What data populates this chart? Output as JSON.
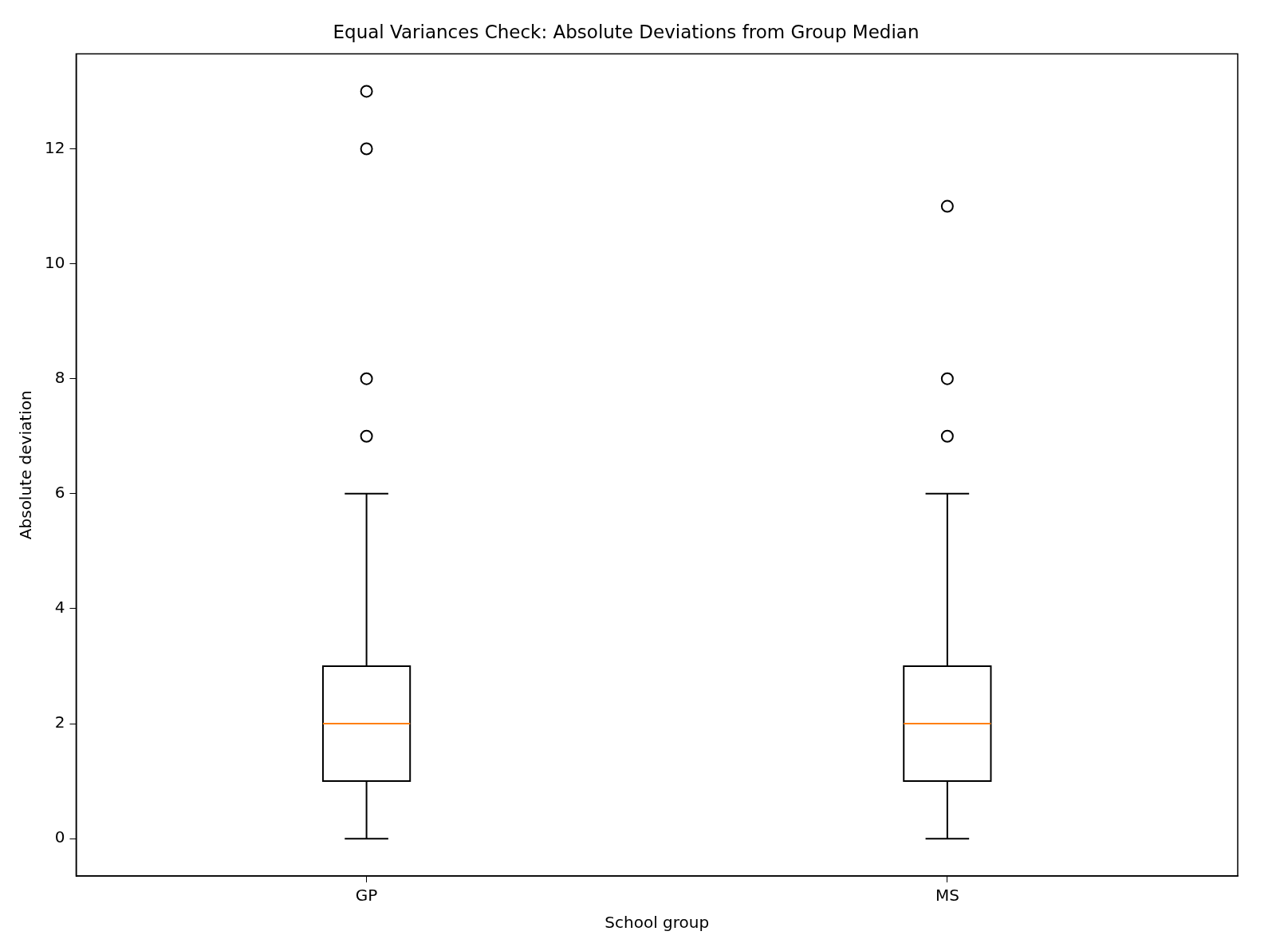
{
  "chart_data": {
    "type": "box",
    "title": "Equal Variances Check: Absolute Deviations from Group Median",
    "xlabel": "School group",
    "ylabel": "Absolute deviation",
    "categories": [
      "GP",
      "MS"
    ],
    "boxes": [
      {
        "low": 0,
        "q1": 1,
        "median": 2,
        "q3": 3,
        "high": 6,
        "outliers": [
          7,
          8,
          12,
          13
        ]
      },
      {
        "low": 0,
        "q1": 1,
        "median": 2,
        "q3": 3,
        "high": 6,
        "outliers": [
          7,
          8,
          11
        ]
      }
    ],
    "color": "#000000",
    "marker": "circle",
    "ylim": [
      -0.65,
      13.65
    ],
    "yticks": [
      0,
      2,
      4,
      6,
      8,
      10,
      12
    ],
    "grid": false,
    "legend": false
  }
}
